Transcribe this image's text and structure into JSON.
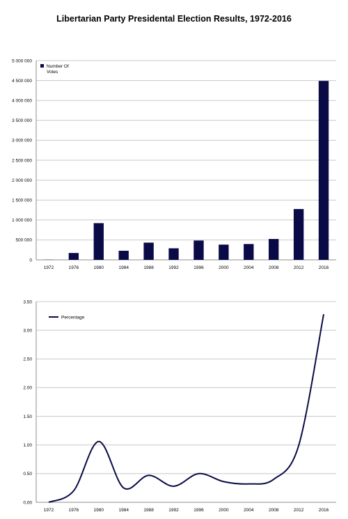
{
  "title": "Libertarian Party Presidental Election Results, 1972-2016",
  "colors": {
    "series": "#0a0a46",
    "grid": "#c8c8c8",
    "axis": "#8c8c8c"
  },
  "chart_data": [
    {
      "type": "bar",
      "categories": [
        "1972",
        "1976",
        "1980",
        "1984",
        "1988",
        "1992",
        "1996",
        "2000",
        "2004",
        "2008",
        "2012",
        "2016"
      ],
      "series": [
        {
          "name": "Number Of Votes",
          "values": [
            3700,
            172000,
            921000,
            228000,
            432000,
            290000,
            485000,
            382000,
            397000,
            524000,
            1275000,
            4490000
          ]
        }
      ],
      "yticks": [
        "0",
        "500 000",
        "1 000 000",
        "1 500 000",
        "2 000 000",
        "2 500 000",
        "3 000 000",
        "3 500 000",
        "4 000 000",
        "4 500 000",
        "5 000 000"
      ],
      "ylim": [
        0,
        5000000
      ],
      "grid": true,
      "legend": "top-left",
      "xlabel": "",
      "ylabel": ""
    },
    {
      "type": "line",
      "x": [
        "1972",
        "1976",
        "1980",
        "1984",
        "1988",
        "1992",
        "1996",
        "2000",
        "2004",
        "2008",
        "2012",
        "2016"
      ],
      "series": [
        {
          "name": "Percentage",
          "values": [
            0.0,
            0.2,
            1.06,
            0.25,
            0.47,
            0.28,
            0.5,
            0.36,
            0.32,
            0.4,
            0.99,
            3.28
          ]
        }
      ],
      "yticks": [
        "0.00",
        "0.50",
        "1.00",
        "1.50",
        "2.00",
        "2.50",
        "3.00",
        "3.50"
      ],
      "ylim": [
        0,
        3.5
      ],
      "grid": true,
      "legend": "top-left",
      "xlabel": "",
      "ylabel": ""
    }
  ]
}
